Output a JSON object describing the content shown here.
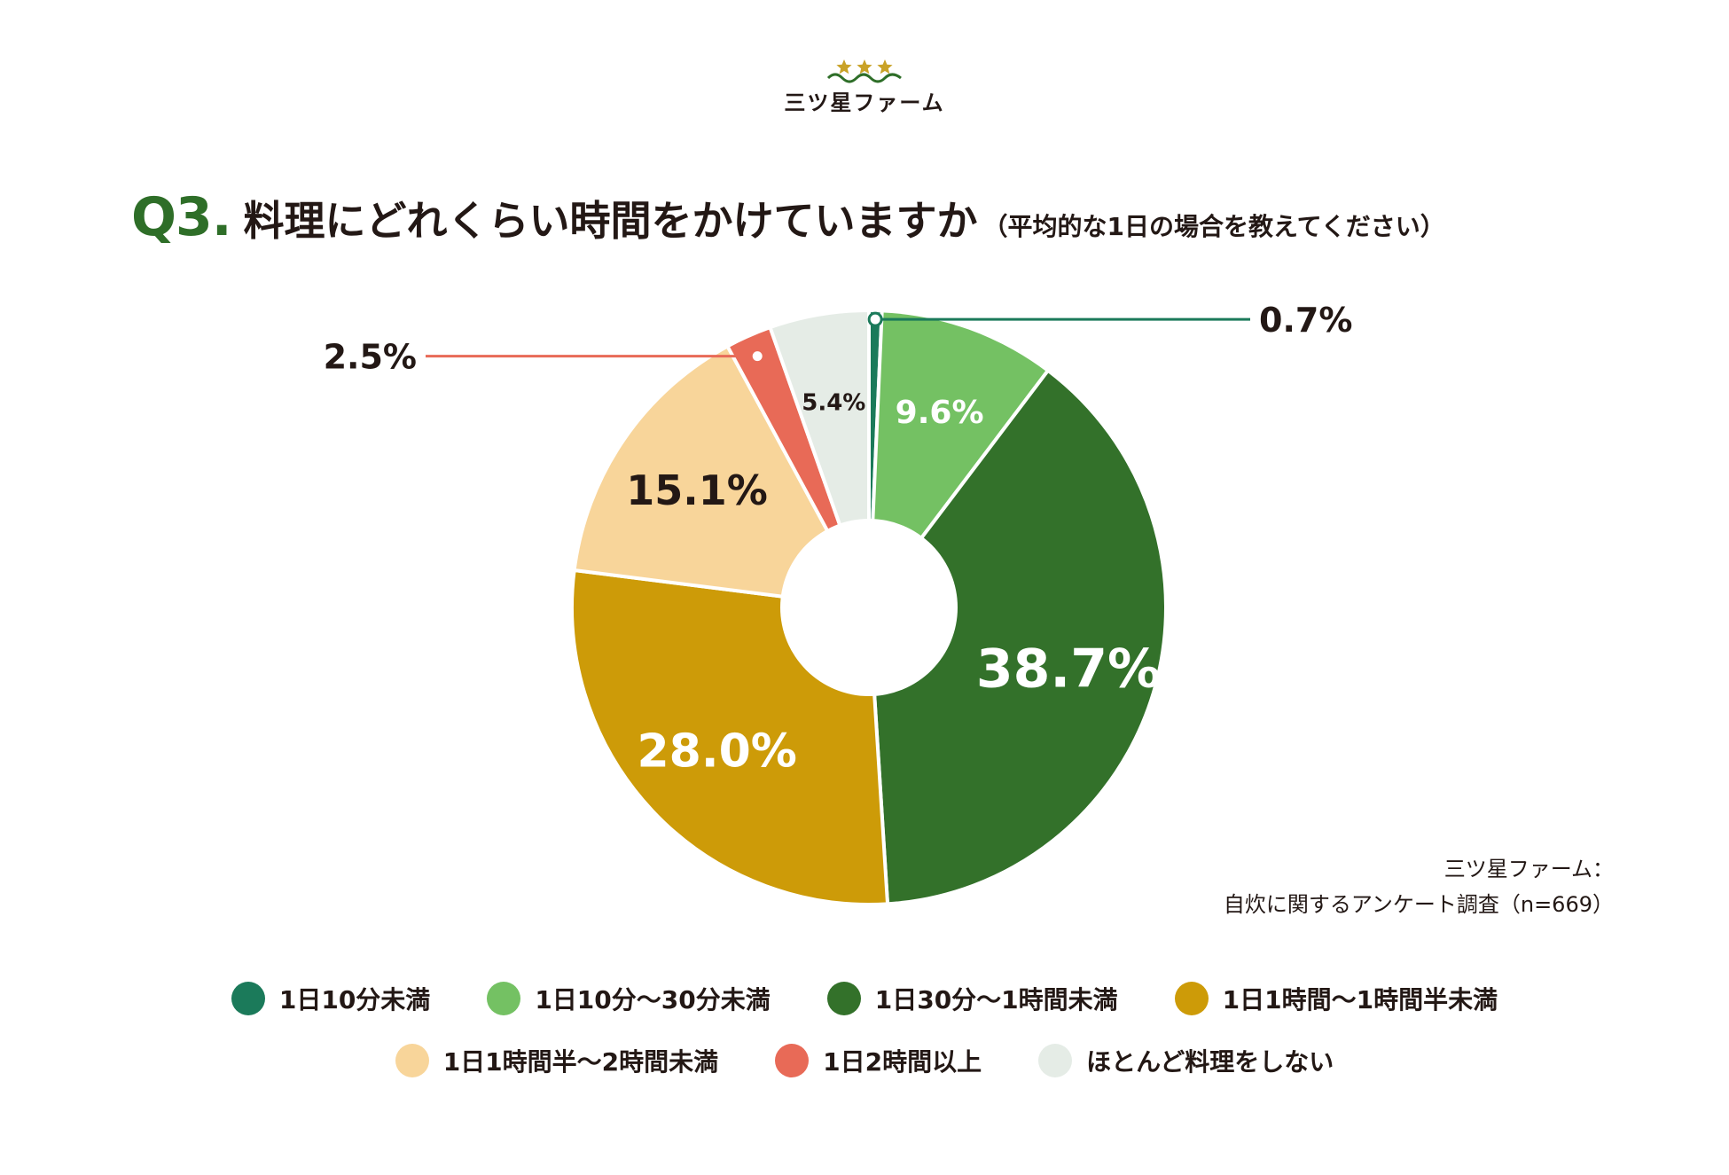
{
  "logo": {
    "name": "三ツ星ファーム",
    "star_color": "#c9a227",
    "wave_color": "#2e6e28"
  },
  "title": {
    "number": "Q3.",
    "question": "料理にどれくらい時間をかけていますか",
    "note": "（平均的な1日の場合を教えてください）"
  },
  "source": {
    "line1": "三ツ星ファーム：",
    "line2": "自炊に関するアンケート調査（n=669）"
  },
  "chart_data": {
    "type": "pie",
    "variant": "donut",
    "title": "料理にどれくらい時間をかけていますか",
    "unit": "%",
    "legend_position": "bottom",
    "slices": [
      {
        "label": "1日10分未満",
        "value": 0.7,
        "display": "0.7%",
        "color": "#1b7a5a",
        "label_color": "#231815",
        "callout": true
      },
      {
        "label": "1日10分〜30分未満",
        "value": 9.6,
        "display": "9.6%",
        "color": "#74c163",
        "label_color": "#ffffff",
        "callout": false
      },
      {
        "label": "1日30分〜1時間未満",
        "value": 38.7,
        "display": "38.7%",
        "color": "#33712a",
        "label_color": "#ffffff",
        "callout": false
      },
      {
        "label": "1日1時間〜1時間半未満",
        "value": 28.0,
        "display": "28.0%",
        "color": "#cd9b08",
        "label_color": "#ffffff",
        "callout": false
      },
      {
        "label": "1日1時間半〜2時間未満",
        "value": 15.1,
        "display": "15.1%",
        "color": "#f8d59a",
        "label_color": "#231815",
        "callout": false
      },
      {
        "label": "1日2時間以上",
        "value": 2.5,
        "display": "2.5%",
        "color": "#e86a57",
        "label_color": "#231815",
        "callout": true
      },
      {
        "label": "ほとんど料理をしない",
        "value": 5.4,
        "display": "5.4%",
        "color": "#e5ece6",
        "label_color": "#231815",
        "callout": false
      }
    ]
  },
  "legend_rows": [
    [
      0,
      1,
      2,
      3
    ],
    [
      4,
      5,
      6
    ]
  ]
}
